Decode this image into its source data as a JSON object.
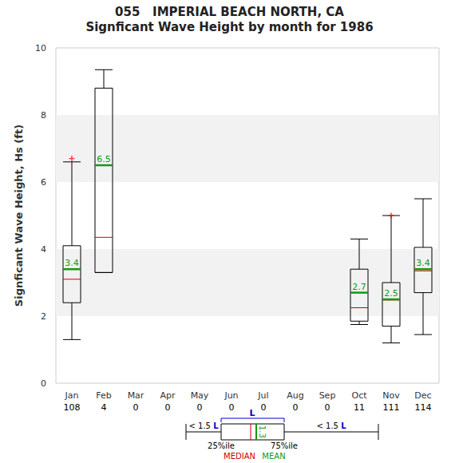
{
  "chart_data": {
    "type": "boxplot",
    "title": "055   IMPERIAL BEACH NORTH, CA",
    "subtitle": "Signficant Wave Height by month for 1986",
    "y_label": "Signficant Wave Height, Hs (ft)",
    "categories": [
      "Jan",
      "Feb",
      "Mar",
      "Apr",
      "May",
      "Jun",
      "Jul",
      "Aug",
      "Sep",
      "Oct",
      "Nov",
      "Dec"
    ],
    "counts": [
      108,
      4,
      0,
      0,
      0,
      0,
      0,
      0,
      0,
      11,
      111,
      114
    ],
    "ylim": [
      0,
      10
    ],
    "yticks": [
      0,
      2,
      4,
      6,
      8,
      10
    ],
    "grid": true,
    "boxes": {
      "color": "#000000",
      "values": [
        {
          "low": 1.3,
          "q1": 2.4,
          "q3": 4.1,
          "high": 6.6
        },
        {
          "low": 3.3,
          "q1": 3.3,
          "q3": 8.8,
          "high": 9.35
        },
        null,
        null,
        null,
        null,
        null,
        null,
        null,
        {
          "low": 1.75,
          "q1": 1.85,
          "q3": 3.4,
          "high": 4.3
        },
        {
          "low": 1.2,
          "q1": 1.7,
          "q3": 3.0,
          "high": 5.0
        },
        {
          "low": 1.45,
          "q1": 2.7,
          "q3": 4.05,
          "high": 5.5
        }
      ]
    },
    "series": [
      {
        "name": "MEDIAN",
        "color": "#cc0000",
        "values": [
          3.1,
          4.35,
          null,
          null,
          null,
          null,
          null,
          null,
          null,
          2.25,
          2.48,
          3.35
        ]
      },
      {
        "name": "MEAN",
        "color": "#119911",
        "data_labels": true,
        "values": [
          3.4,
          6.5,
          null,
          null,
          null,
          null,
          null,
          null,
          null,
          2.7,
          2.5,
          3.4
        ]
      }
    ],
    "outliers": {
      "color": "#ff0000",
      "marker": "plus",
      "values": [
        [
          6.7
        ],
        [],
        [],
        [],
        [],
        [],
        [],
        [],
        [],
        [],
        [
          5.0
        ],
        []
      ]
    },
    "key": {
      "iqr_label": "L",
      "whisker_label": "< 1.5",
      "q1_label": "25%ile",
      "q3_label": "75%ile",
      "example_mean": 1.3
    }
  }
}
